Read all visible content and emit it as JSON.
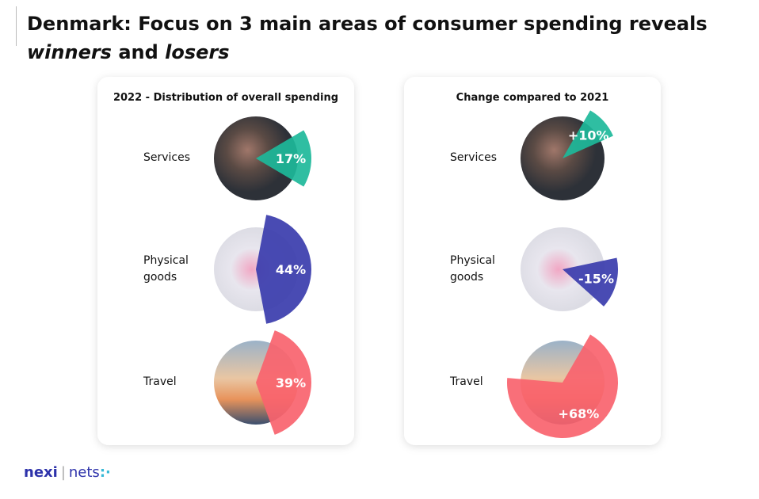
{
  "header": {
    "title": [
      {
        "text": "Denmark: Focus on 3 main areas of consumer spending reveals",
        "italic": false
      },
      {
        "text": "winners",
        "italic": true
      },
      {
        "text": "and",
        "italic": false
      },
      {
        "text": "losers",
        "italic": true
      }
    ]
  },
  "chart_data": [
    {
      "type": "pie",
      "title": "2022 - Distribution of overall spending",
      "categories": [
        "Services",
        "Physical goods",
        "Travel"
      ],
      "values": [
        17,
        44,
        39
      ],
      "value_labels": [
        "17%",
        "44%",
        "39%"
      ],
      "colors": [
        "#1db99a",
        "#3a3cad",
        "#f8636e"
      ]
    },
    {
      "type": "pie",
      "title": "Change compared to 2021",
      "categories": [
        "Services",
        "Physical goods",
        "Travel"
      ],
      "values": [
        10,
        -15,
        68
      ],
      "value_labels": [
        "+10%",
        "-15%",
        "+68%"
      ],
      "colors": [
        "#1db99a",
        "#3a3cad",
        "#f8636e"
      ]
    }
  ],
  "footer": {
    "logo": [
      "nexi",
      "nets"
    ]
  }
}
